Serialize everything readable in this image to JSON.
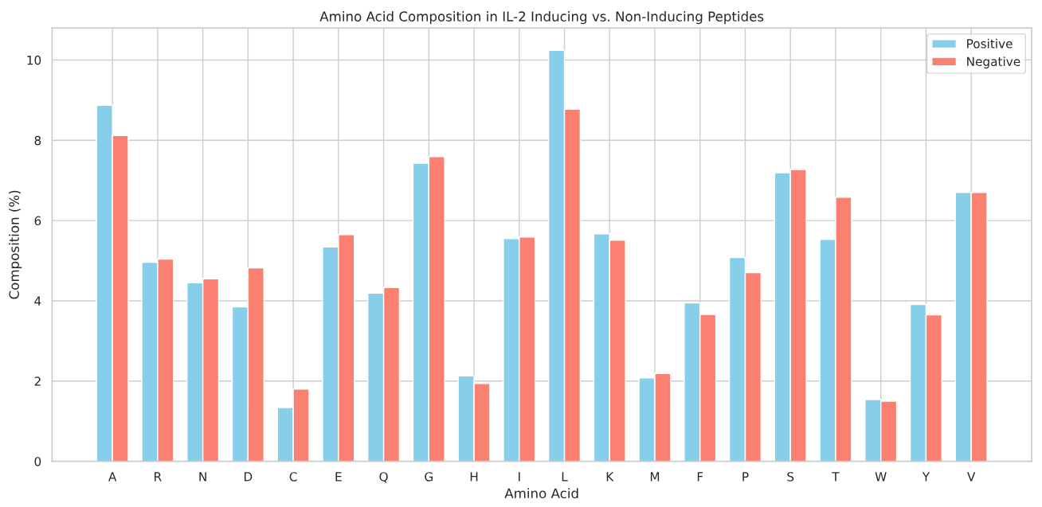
{
  "chart_data": {
    "type": "bar",
    "title": "Amino Acid Composition in IL-2 Inducing vs. Non-Inducing Peptides",
    "xlabel": "Amino Acid",
    "ylabel": "Composition (%)",
    "categories": [
      "A",
      "R",
      "N",
      "D",
      "C",
      "E",
      "Q",
      "G",
      "H",
      "I",
      "L",
      "K",
      "M",
      "F",
      "P",
      "S",
      "T",
      "W",
      "Y",
      "V"
    ],
    "series": [
      {
        "name": "Positive",
        "color": "#87ceeb",
        "values": [
          8.87,
          4.96,
          4.45,
          3.85,
          1.34,
          5.34,
          4.19,
          7.43,
          2.13,
          5.55,
          10.24,
          5.67,
          2.08,
          3.95,
          5.08,
          7.19,
          5.53,
          1.54,
          3.91,
          6.7
        ]
      },
      {
        "name": "Negative",
        "color": "#fa8072",
        "values": [
          8.12,
          5.04,
          4.55,
          4.82,
          1.8,
          5.65,
          4.33,
          7.59,
          1.94,
          5.59,
          8.77,
          5.51,
          2.19,
          3.66,
          4.7,
          7.27,
          6.58,
          1.5,
          3.65,
          6.7
        ]
      }
    ],
    "ylim": [
      0,
      10.8
    ],
    "yticks": [
      0,
      2,
      4,
      6,
      8,
      10
    ],
    "grid": true,
    "legend": "top right"
  }
}
